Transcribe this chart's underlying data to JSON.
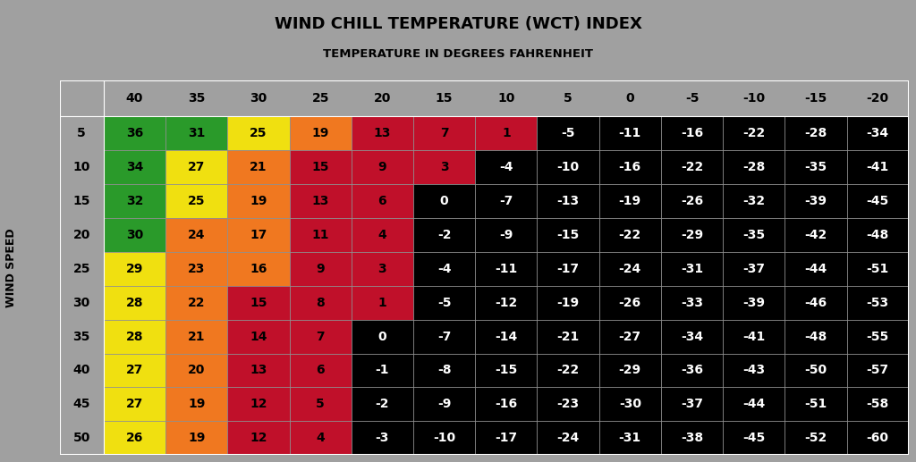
{
  "title1": "WIND CHILL TEMPERATURE (WCT) INDEX",
  "title2": "TEMPERATURE IN DEGREES FAHRENHEIT",
  "ylabel": "WIND SPEED",
  "col_headers": [
    "40",
    "35",
    "30",
    "25",
    "20",
    "15",
    "10",
    "5",
    "0",
    "-5",
    "-10",
    "-15",
    "-20"
  ],
  "row_headers": [
    "5",
    "10",
    "15",
    "20",
    "25",
    "30",
    "35",
    "40",
    "45",
    "50"
  ],
  "values": [
    [
      "36",
      "31",
      "25",
      "19",
      "13",
      "7",
      "1",
      "-5",
      "-11",
      "-16",
      "-22",
      "-28",
      "-34"
    ],
    [
      "34",
      "27",
      "21",
      "15",
      "9",
      "3",
      "-4",
      "-10",
      "-16",
      "-22",
      "-28",
      "-35",
      "-41"
    ],
    [
      "32",
      "25",
      "19",
      "13",
      "6",
      "0",
      "-7",
      "-13",
      "-19",
      "-26",
      "-32",
      "-39",
      "-45"
    ],
    [
      "30",
      "24",
      "17",
      "11",
      "4",
      "-2",
      "-9",
      "-15",
      "-22",
      "-29",
      "-35",
      "-42",
      "-48"
    ],
    [
      "29",
      "23",
      "16",
      "9",
      "3",
      "-4",
      "-11",
      "-17",
      "-24",
      "-31",
      "-37",
      "-44",
      "-51"
    ],
    [
      "28",
      "22",
      "15",
      "8",
      "1",
      "-5",
      "-12",
      "-19",
      "-26",
      "-33",
      "-39",
      "-46",
      "-53"
    ],
    [
      "28",
      "21",
      "14",
      "7",
      "0",
      "-7",
      "-14",
      "-21",
      "-27",
      "-34",
      "-41",
      "-48",
      "-55"
    ],
    [
      "27",
      "20",
      "13",
      "6",
      "-1",
      "-8",
      "-15",
      "-22",
      "-29",
      "-36",
      "-43",
      "-50",
      "-57"
    ],
    [
      "27",
      "19",
      "12",
      "5",
      "-2",
      "-9",
      "-16",
      "-23",
      "-30",
      "-37",
      "-44",
      "-51",
      "-58"
    ],
    [
      "26",
      "19",
      "12",
      "4",
      "-3",
      "-10",
      "-17",
      "-24",
      "-31",
      "-38",
      "-45",
      "-52",
      "-60"
    ]
  ],
  "cell_colors": [
    [
      "#2a9a2a",
      "#2a9a2a",
      "#f0e010",
      "#f07820",
      "#c0102a",
      "#c0102a",
      "#c0102a",
      "#000000",
      "#000000",
      "#000000",
      "#000000",
      "#000000",
      "#000000"
    ],
    [
      "#2a9a2a",
      "#f0e010",
      "#f07820",
      "#c0102a",
      "#c0102a",
      "#c0102a",
      "#000000",
      "#000000",
      "#000000",
      "#000000",
      "#000000",
      "#000000",
      "#000000"
    ],
    [
      "#2a9a2a",
      "#f0e010",
      "#f07820",
      "#c0102a",
      "#c0102a",
      "#000000",
      "#000000",
      "#000000",
      "#000000",
      "#000000",
      "#000000",
      "#000000",
      "#000000"
    ],
    [
      "#2a9a2a",
      "#f07820",
      "#f07820",
      "#c0102a",
      "#c0102a",
      "#000000",
      "#000000",
      "#000000",
      "#000000",
      "#000000",
      "#000000",
      "#000000",
      "#000000"
    ],
    [
      "#f0e010",
      "#f07820",
      "#f07820",
      "#c0102a",
      "#c0102a",
      "#000000",
      "#000000",
      "#000000",
      "#000000",
      "#000000",
      "#000000",
      "#000000",
      "#000000"
    ],
    [
      "#f0e010",
      "#f07820",
      "#c0102a",
      "#c0102a",
      "#c0102a",
      "#000000",
      "#000000",
      "#000000",
      "#000000",
      "#000000",
      "#000000",
      "#000000",
      "#000000"
    ],
    [
      "#f0e010",
      "#f07820",
      "#c0102a",
      "#c0102a",
      "#000000",
      "#000000",
      "#000000",
      "#000000",
      "#000000",
      "#000000",
      "#000000",
      "#000000",
      "#000000"
    ],
    [
      "#f0e010",
      "#f07820",
      "#c0102a",
      "#c0102a",
      "#000000",
      "#000000",
      "#000000",
      "#000000",
      "#000000",
      "#000000",
      "#000000",
      "#000000",
      "#000000"
    ],
    [
      "#f0e010",
      "#f07820",
      "#c0102a",
      "#c0102a",
      "#000000",
      "#000000",
      "#000000",
      "#000000",
      "#000000",
      "#000000",
      "#000000",
      "#000000",
      "#000000"
    ],
    [
      "#f0e010",
      "#f07820",
      "#c0102a",
      "#c0102a",
      "#000000",
      "#000000",
      "#000000",
      "#000000",
      "#000000",
      "#000000",
      "#000000",
      "#000000",
      "#000000"
    ]
  ],
  "outer_bg": "#a0a0a0",
  "table_bg": "#909090",
  "title_color": "#000000",
  "header_text_color": "#000000"
}
